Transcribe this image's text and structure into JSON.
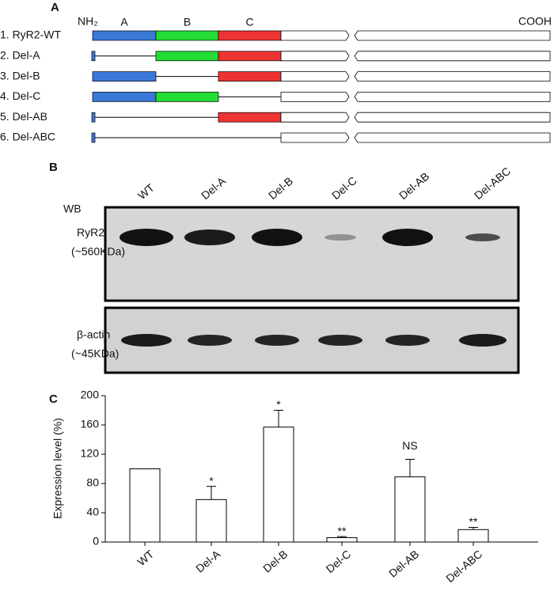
{
  "panel_a": {
    "label": "A",
    "nh2": "NH₂",
    "cooh": "COOH",
    "domains": [
      "A",
      "B",
      "C"
    ],
    "constructs": [
      "1. RyR2-WT",
      "2. Del-A",
      "3. Del-B",
      "4. Del-C",
      "5. Del-AB",
      "6. Del-ABC"
    ]
  },
  "panel_b": {
    "label": "B",
    "wb": "WB",
    "lanes": [
      "WT",
      "Del-A",
      "Del-B",
      "Del-C",
      "Del-AB",
      "Del-ABC"
    ],
    "blots": [
      {
        "name": "RyR2",
        "size": "(~560KDa)"
      },
      {
        "name": "β-actin",
        "size": "(~45KDa)"
      }
    ]
  },
  "chart_data": {
    "type": "bar",
    "panel_label": "C",
    "y_label": "Expression level (%)",
    "categories": [
      "WT",
      "Del-A",
      "Del-B",
      "Del-C",
      "Del-AB",
      "Del-ABC"
    ],
    "values": [
      100,
      58,
      157,
      6,
      89,
      17
    ],
    "errors": [
      0,
      18,
      23,
      1.5,
      24,
      3
    ],
    "annotations": [
      null,
      "*",
      "*",
      "**",
      "NS",
      "**"
    ],
    "color": "#ffffff",
    "ylim": [
      0,
      200
    ],
    "yticks": [
      0,
      40,
      80,
      120,
      160,
      200
    ]
  }
}
